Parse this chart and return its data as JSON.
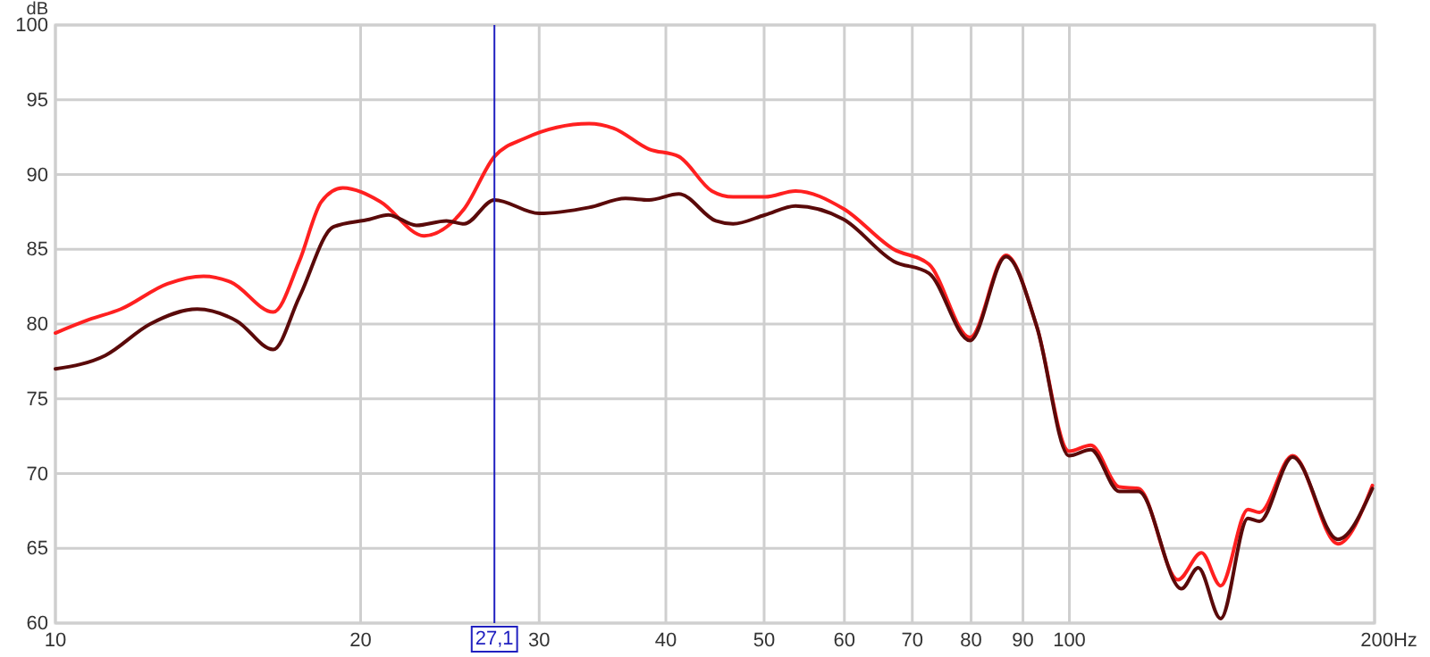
{
  "chart_data": {
    "type": "line",
    "ylabel": "dB",
    "log": "x",
    "grid": true,
    "line_style": "solid",
    "marker": "none",
    "xlim": [
      10,
      200
    ],
    "ylim": [
      60,
      100
    ],
    "xticks": [
      10,
      20,
      30,
      40,
      50,
      60,
      70,
      80,
      90,
      100,
      {
        "value": 200,
        "label": "200Hz"
      }
    ],
    "yticks": [
      60,
      65,
      70,
      75,
      80,
      85,
      90,
      95,
      100
    ],
    "ref_lines": [
      {
        "axis": "x",
        "value": 27.1,
        "label": "27,1",
        "color": "#2020c0"
      }
    ],
    "series": [
      {
        "color": "#ff2020",
        "x": [
          10.0,
          10.8,
          11.6,
          12.9,
          14.0,
          14.9,
          16.4,
          17.4,
          18.3,
          19.2,
          20.9,
          23.1,
          25.3,
          27.1,
          29.0,
          33.6,
          35.5,
          38.5,
          41.2,
          44.4,
          46.6,
          50.1,
          53.7,
          59.9,
          67.1,
          72.7,
          79.8,
          86.6,
          92.9,
          99.9,
          105,
          112,
          117,
          128,
          135,
          141,
          150,
          154,
          166,
          184,
          199
        ],
        "values": [
          79.4,
          80.3,
          81.0,
          82.7,
          83.2,
          82.8,
          80.8,
          84.2,
          88.2,
          89.1,
          88.2,
          85.9,
          87.7,
          91.2,
          92.4,
          93.4,
          93.1,
          91.7,
          91.2,
          88.9,
          88.5,
          88.5,
          88.9,
          87.7,
          85.0,
          84.0,
          79.1,
          84.6,
          79.8,
          71.5,
          71.9,
          69.1,
          69.0,
          62.9,
          64.7,
          62.5,
          67.6,
          67.4,
          71.2,
          65.3,
          69.2
        ]
      },
      {
        "color": "#5a0a0a",
        "x": [
          10.0,
          11.2,
          12.4,
          13.8,
          15.1,
          16.4,
          17.4,
          18.8,
          20.4,
          21.3,
          22.7,
          24.3,
          25.3,
          27.1,
          30.0,
          33.6,
          36.5,
          38.5,
          41.2,
          44.8,
          46.6,
          50.1,
          53.7,
          59.9,
          67.1,
          72.7,
          79.8,
          86.6,
          92.9,
          99.9,
          105,
          112,
          117,
          129,
          134,
          141,
          150,
          154,
          166,
          184,
          199
        ],
        "values": [
          77.0,
          77.9,
          80.0,
          81.0,
          80.2,
          78.3,
          81.8,
          86.5,
          87.0,
          87.3,
          86.6,
          86.9,
          86.7,
          88.3,
          87.4,
          87.8,
          88.4,
          88.3,
          88.7,
          86.9,
          86.7,
          87.3,
          87.9,
          87.0,
          84.2,
          83.4,
          78.9,
          84.5,
          79.8,
          71.2,
          71.6,
          68.8,
          68.8,
          62.3,
          63.7,
          60.3,
          67.0,
          66.8,
          71.1,
          65.6,
          69.0
        ]
      }
    ]
  }
}
